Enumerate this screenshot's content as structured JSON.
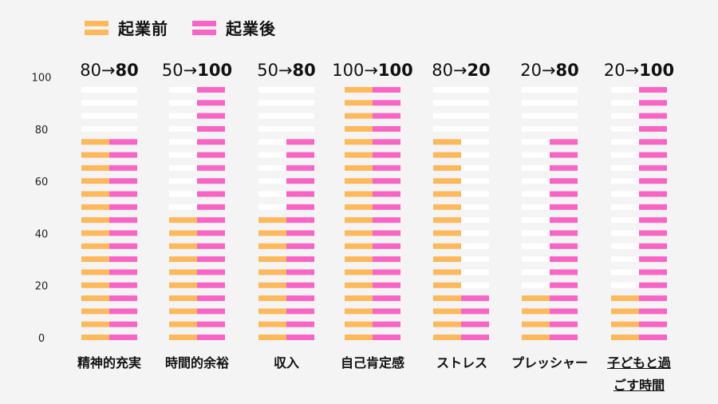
{
  "chart_data": {
    "type": "bar",
    "title": "",
    "xlabel": "",
    "ylabel": "",
    "ylim": [
      0,
      100
    ],
    "yticks": [
      0,
      20,
      40,
      60,
      80,
      100
    ],
    "unit_step": 5,
    "categories": [
      "精神的充実",
      "時間的余裕",
      "収入",
      "自己肯定感",
      "ストレス",
      "プレッシャー",
      "子どもと過ごす時間"
    ],
    "series": [
      {
        "name": "起業前",
        "color": "#FDB95B",
        "values": [
          80,
          50,
          50,
          100,
          80,
          20,
          20
        ]
      },
      {
        "name": "起業後",
        "color": "#F865C5",
        "values": [
          80,
          100,
          80,
          100,
          20,
          80,
          100
        ]
      }
    ],
    "headers": [
      {
        "before": "80",
        "arrow": "→",
        "after": "80"
      },
      {
        "before": "50",
        "arrow": "→",
        "after": "100"
      },
      {
        "before": "50",
        "arrow": "→",
        "after": "80"
      },
      {
        "before": "100",
        "arrow": "→",
        "after": "100"
      },
      {
        "before": "80",
        "arrow": "→",
        "after": "20"
      },
      {
        "before": "20",
        "arrow": "→",
        "after": "80"
      },
      {
        "before": "20",
        "arrow": "→",
        "after": "100"
      }
    ],
    "legend_position": "top-left",
    "grid": false,
    "empty_color": "#FFFFFF"
  },
  "legend": [
    {
      "label": "起業前",
      "color": "#FDB95B"
    },
    {
      "label": "起業後",
      "color": "#F865C5"
    }
  ],
  "labels": {
    "cat0": "精神的充実",
    "cat1": "時間的余裕",
    "cat2": "収入",
    "cat3": "自己肯定感",
    "cat4": "ストレス",
    "cat5": "プレッシャー",
    "cat6_line1": "子どもと過",
    "cat6_line2": "ごす時間"
  }
}
